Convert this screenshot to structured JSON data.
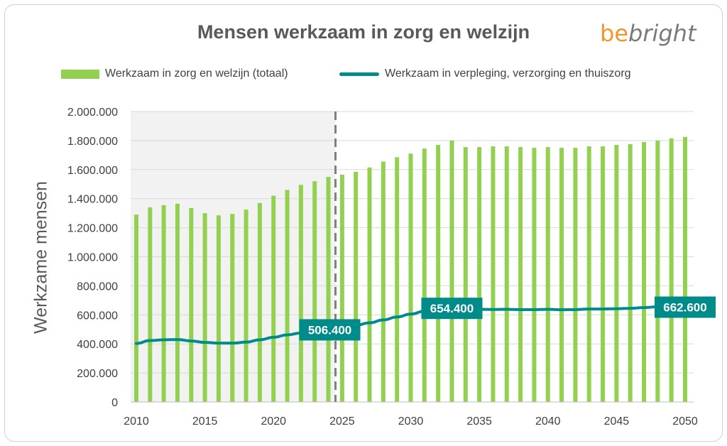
{
  "chart_data": {
    "type": "bar",
    "title": "Mensen werkzaam in zorg en welzijn",
    "ylabel": "Werkzame mensen",
    "xlabel": "",
    "ylim": [
      0,
      2000000
    ],
    "yticks": [
      "0",
      "200.000",
      "400.000",
      "600.000",
      "800.000",
      "1.000.000",
      "1.200.000",
      "1.400.000",
      "1.600.000",
      "1.800.000",
      "2.000.000"
    ],
    "xticks": [
      "2010",
      "2015",
      "2020",
      "2025",
      "2030",
      "2035",
      "2040",
      "2045",
      "2050"
    ],
    "x": [
      2010,
      2011,
      2012,
      2013,
      2014,
      2015,
      2016,
      2017,
      2018,
      2019,
      2020,
      2021,
      2022,
      2023,
      2024,
      2025,
      2026,
      2027,
      2028,
      2029,
      2030,
      2031,
      2032,
      2033,
      2034,
      2035,
      2036,
      2037,
      2038,
      2039,
      2040,
      2041,
      2042,
      2043,
      2044,
      2045,
      2046,
      2047,
      2048,
      2049,
      2050
    ],
    "series": [
      {
        "name": "Werkzaam in zorg en welzijn (totaal)",
        "type": "bar",
        "color": "#92d050",
        "values": [
          1290000,
          1340000,
          1355000,
          1365000,
          1335000,
          1300000,
          1285000,
          1295000,
          1325000,
          1370000,
          1420000,
          1460000,
          1495000,
          1520000,
          1550000,
          1565000,
          1585000,
          1615000,
          1655000,
          1685000,
          1710000,
          1745000,
          1770000,
          1800000,
          1755000,
          1755000,
          1760000,
          1760000,
          1755000,
          1750000,
          1755000,
          1750000,
          1750000,
          1760000,
          1760000,
          1770000,
          1775000,
          1790000,
          1800000,
          1815000,
          1825000
        ]
      },
      {
        "name": "Werkzaam in verpleging, verzorging en thuiszorg",
        "type": "line",
        "color": "#008b8b",
        "values": [
          403000,
          423000,
          428000,
          430000,
          420000,
          410000,
          405000,
          405000,
          412000,
          428000,
          445000,
          462000,
          475000,
          490000,
          506400,
          518000,
          528000,
          545000,
          565000,
          585000,
          605000,
          625000,
          645000,
          654400,
          640000,
          638000,
          637000,
          638000,
          636000,
          636000,
          638000,
          635000,
          636000,
          640000,
          640000,
          642000,
          645000,
          650000,
          655000,
          660000,
          662600
        ]
      }
    ],
    "labels": [
      {
        "year": 2024,
        "text": "506.400"
      },
      {
        "year": 2033,
        "text": "654.400"
      },
      {
        "year": 2050,
        "text": "662.600"
      }
    ],
    "historical_until": 2024
  },
  "logo": {
    "be": "be",
    "bright": "bright"
  }
}
